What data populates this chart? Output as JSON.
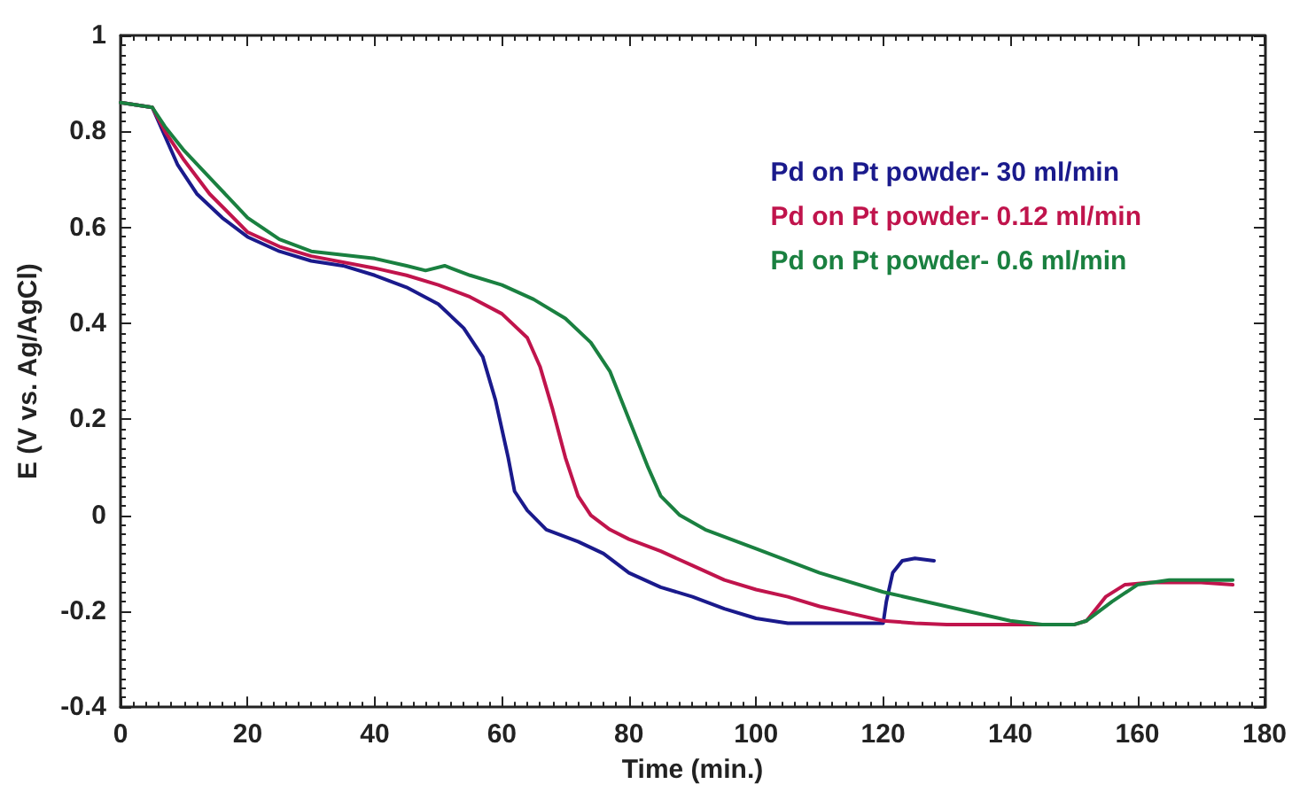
{
  "chart_data": {
    "type": "line",
    "xlabel": "Time (min.)",
    "ylabel": "E (V vs. Ag/AgCl)",
    "xlim": [
      0,
      180
    ],
    "xticks": [
      0,
      20,
      40,
      60,
      80,
      100,
      120,
      140,
      160,
      180
    ],
    "ylim": [
      -0.4,
      1
    ],
    "yticks": [
      -0.4,
      -0.2,
      0,
      0.2,
      0.4,
      0.6,
      0.8,
      1
    ],
    "grid": false,
    "legend": "top right",
    "marker": "none",
    "line_style": "solid",
    "series": [
      {
        "name": "Pd on Pt powder- 30 ml/min",
        "color": "#1a1a8c",
        "x": [
          0,
          5,
          7,
          9,
          12,
          16,
          20,
          25,
          30,
          35,
          40,
          45,
          50,
          54,
          57,
          59,
          61,
          62,
          64,
          67,
          72,
          76,
          80,
          85,
          90,
          95,
          100,
          105,
          110,
          120,
          120.5,
          121.5,
          123,
          125,
          128
        ],
        "values": [
          0.86,
          0.85,
          0.79,
          0.73,
          0.67,
          0.62,
          0.58,
          0.55,
          0.53,
          0.52,
          0.5,
          0.475,
          0.44,
          0.39,
          0.33,
          0.24,
          0.12,
          0.05,
          0.01,
          -0.03,
          -0.055,
          -0.08,
          -0.12,
          -0.15,
          -0.17,
          -0.195,
          -0.215,
          -0.225,
          -0.225,
          -0.225,
          -0.18,
          -0.12,
          -0.095,
          -0.09,
          -0.095
        ]
      },
      {
        "name": "Pd on Pt powder- 0.12 ml/min",
        "color": "#c0144c",
        "x": [
          0,
          5,
          7,
          10,
          14,
          20,
          25,
          30,
          40,
          45,
          50,
          55,
          60,
          64,
          66,
          68,
          70,
          72,
          74,
          77,
          80,
          85,
          90,
          95,
          100,
          105,
          110,
          115,
          120,
          125,
          130,
          140,
          150,
          152,
          155,
          158,
          162,
          170,
          175
        ],
        "values": [
          0.86,
          0.85,
          0.8,
          0.74,
          0.67,
          0.59,
          0.56,
          0.54,
          0.515,
          0.5,
          0.48,
          0.455,
          0.42,
          0.37,
          0.31,
          0.22,
          0.12,
          0.04,
          0,
          -0.03,
          -0.05,
          -0.075,
          -0.105,
          -0.135,
          -0.155,
          -0.17,
          -0.19,
          -0.205,
          -0.22,
          -0.225,
          -0.228,
          -0.228,
          -0.228,
          -0.22,
          -0.17,
          -0.145,
          -0.14,
          -0.14,
          -0.145
        ]
      },
      {
        "name": "Pd on Pt powder- 0.6 ml/min",
        "color": "#1a8040",
        "x": [
          0,
          5,
          7,
          10,
          15,
          20,
          25,
          30,
          40,
          45,
          48,
          51,
          55,
          60,
          65,
          70,
          74,
          77,
          80,
          83,
          85,
          88,
          92,
          100,
          110,
          120,
          130,
          140,
          145,
          150,
          152,
          156,
          160,
          165,
          175
        ],
        "values": [
          0.86,
          0.85,
          0.81,
          0.76,
          0.69,
          0.62,
          0.575,
          0.55,
          0.535,
          0.52,
          0.51,
          0.52,
          0.5,
          0.48,
          0.45,
          0.41,
          0.36,
          0.3,
          0.2,
          0.1,
          0.04,
          0,
          -0.03,
          -0.07,
          -0.12,
          -0.16,
          -0.19,
          -0.22,
          -0.228,
          -0.228,
          -0.22,
          -0.18,
          -0.145,
          -0.135,
          -0.135
        ]
      }
    ]
  }
}
